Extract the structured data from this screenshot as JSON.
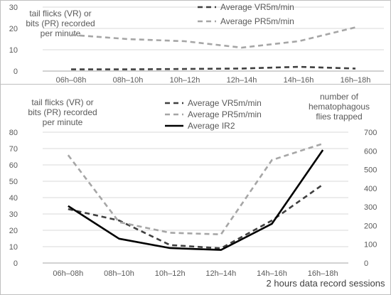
{
  "chart_data": [
    {
      "type": "line",
      "categories": [
        "06h–08h",
        "08h–10h",
        "10h–12h",
        "12h–14h",
        "14h–16h",
        "16h–18h"
      ],
      "ylabel": "tail flicks (VR)  or bits (PR) recorded per minute",
      "ylabel_lines": [
        "tail flicks (VR)  or",
        "bits (PR) recorded",
        "per minute"
      ],
      "ylim": [
        0,
        30
      ],
      "yticks": [
        0,
        10,
        20,
        30
      ],
      "grid": true,
      "legend": "top",
      "series": [
        {
          "name": "Average VR5m/min",
          "color": "#404040",
          "dash": "dashed",
          "values": [
            0.8,
            0.8,
            1.0,
            1.2,
            2.0,
            1.2
          ]
        },
        {
          "name": "Average PR5m/min",
          "color": "#a6a6a6",
          "dash": "dashed",
          "values": [
            17,
            15,
            14,
            11,
            14,
            20.5
          ]
        }
      ]
    },
    {
      "type": "line",
      "categories": [
        "06h–08h",
        "08h–10h",
        "10h–12h",
        "12h–14h",
        "14h–16h",
        "16h–18h"
      ],
      "xlabel": "2 hours data record sessions",
      "ylabel": "tail flicks (VR) or bits (PR) recorded per minute",
      "ylabel_lines": [
        "tail flicks (VR) or",
        "bits (PR) recorded",
        "per minute"
      ],
      "y2label": "number of hematophagous flies trapped",
      "y2label_lines": [
        "number of",
        "hematophagous",
        "flies trapped"
      ],
      "ylim": [
        0,
        80
      ],
      "yticks": [
        0,
        10,
        20,
        30,
        40,
        50,
        60,
        70,
        80
      ],
      "y2lim": [
        0,
        700
      ],
      "y2ticks": [
        0,
        100,
        200,
        300,
        400,
        500,
        600,
        700
      ],
      "grid": true,
      "legend": "top",
      "series": [
        {
          "name": "Average VR5m/min",
          "axis": "left",
          "color": "#404040",
          "dash": "dashed",
          "values": [
            33,
            26,
            11,
            9,
            26,
            48
          ]
        },
        {
          "name": "Average PR5m/min",
          "axis": "left",
          "color": "#a6a6a6",
          "dash": "dashed",
          "values": [
            66,
            25,
            18.5,
            17.5,
            63,
            73
          ]
        },
        {
          "name": "Average IR2",
          "axis": "right",
          "color": "#000000",
          "dash": "solid",
          "values": [
            305,
            130,
            80,
            70,
            210,
            605
          ]
        }
      ]
    }
  ]
}
